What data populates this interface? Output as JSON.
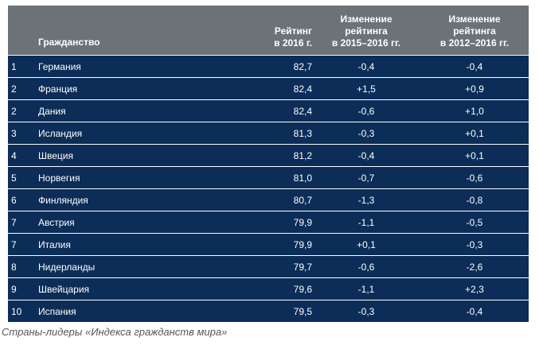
{
  "table": {
    "headers": {
      "rank": "",
      "country": "Гражданство",
      "rating_line1": "Рейтинг",
      "rating_line2": "в 2016 г.",
      "change1_line1": "Изменение",
      "change1_line2": "рейтинга",
      "change1_line3": "в 2015–2016 гг.",
      "change2_line1": "Изменение",
      "change2_line2": "рейтинга",
      "change2_line3": "в 2012–2016 гг."
    },
    "rows": [
      {
        "rank": "1",
        "country": "Германия",
        "rating": "82,7",
        "change_2015_2016": "-0,4",
        "change_2012_2016": "-0,4"
      },
      {
        "rank": "2",
        "country": "Франция",
        "rating": "82,4",
        "change_2015_2016": "+1,5",
        "change_2012_2016": "+0,9"
      },
      {
        "rank": "2",
        "country": "Дания",
        "rating": "82,4",
        "change_2015_2016": "-0,6",
        "change_2012_2016": "+1,0"
      },
      {
        "rank": "3",
        "country": "Исландия",
        "rating": "81,3",
        "change_2015_2016": "-0,3",
        "change_2012_2016": "+0,1"
      },
      {
        "rank": "4",
        "country": "Швеция",
        "rating": "81,2",
        "change_2015_2016": "-0,4",
        "change_2012_2016": "+0,1"
      },
      {
        "rank": "5",
        "country": "Норвегия",
        "rating": "81,0",
        "change_2015_2016": "-0,7",
        "change_2012_2016": "-0,6"
      },
      {
        "rank": "6",
        "country": "Финляндия",
        "rating": "80,7",
        "change_2015_2016": "-1,3",
        "change_2012_2016": "-0,8"
      },
      {
        "rank": "7",
        "country": "Австрия",
        "rating": "79,9",
        "change_2015_2016": "-1,1",
        "change_2012_2016": "-0,5"
      },
      {
        "rank": "7",
        "country": "Италия",
        "rating": "79,9",
        "change_2015_2016": "+0,1",
        "change_2012_2016": "-0,3"
      },
      {
        "rank": "8",
        "country": "Нидерланды",
        "rating": "79,7",
        "change_2015_2016": "-0,6",
        "change_2012_2016": "-2,6"
      },
      {
        "rank": "9",
        "country": "Швейцария",
        "rating": "79,6",
        "change_2015_2016": "-1,1",
        "change_2012_2016": "+2,3"
      },
      {
        "rank": "10",
        "country": "Испания",
        "rating": "79,5",
        "change_2015_2016": "-0,3",
        "change_2012_2016": "-0,4"
      }
    ]
  },
  "caption": "Страны-лидеры «Индекса гражданств мира»",
  "colors": {
    "header_bg": "#6b7278",
    "row_bg": "#0b2d57",
    "text": "#ffffff",
    "caption": "#555555"
  }
}
